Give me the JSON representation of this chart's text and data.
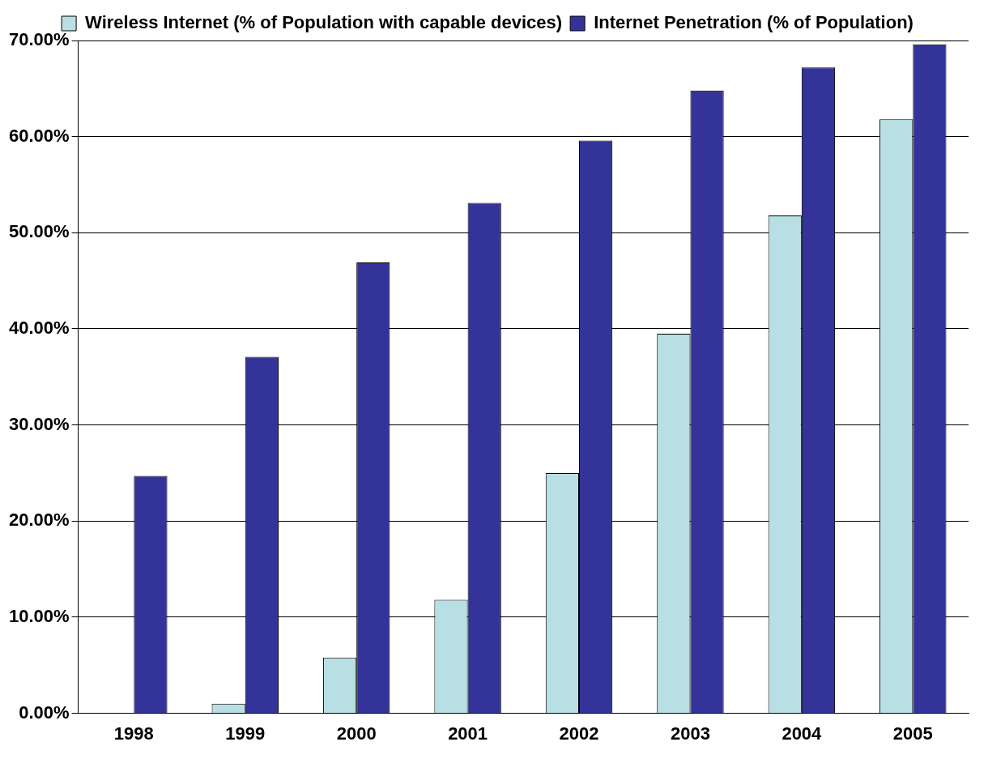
{
  "chart_data": {
    "type": "bar",
    "categories": [
      "1998",
      "1999",
      "2000",
      "2001",
      "2002",
      "2003",
      "2004",
      "2005"
    ],
    "series": [
      {
        "name": "Wireless Internet (% of Population with capable devices)",
        "color": "#b8dfe3",
        "values": [
          0,
          1,
          5.8,
          11.8,
          25,
          39.5,
          51.8,
          61.8
        ]
      },
      {
        "name": "Internet Penetration (% of Population)",
        "color": "#333399",
        "values": [
          24.7,
          37.1,
          46.9,
          53.1,
          59.6,
          64.8,
          67.2,
          69.6
        ]
      }
    ],
    "ylim": [
      0,
      70
    ],
    "yticks": [
      {
        "value": 0,
        "label": "0.00%"
      },
      {
        "value": 10,
        "label": "10.00%"
      },
      {
        "value": 20,
        "label": "20.00%"
      },
      {
        "value": 30,
        "label": "30.00%"
      },
      {
        "value": 40,
        "label": "40.00%"
      },
      {
        "value": 50,
        "label": "50.00%"
      },
      {
        "value": 60,
        "label": "60.00%"
      },
      {
        "value": 70,
        "label": "70.00%"
      }
    ],
    "grid": "y",
    "legend": "top"
  }
}
